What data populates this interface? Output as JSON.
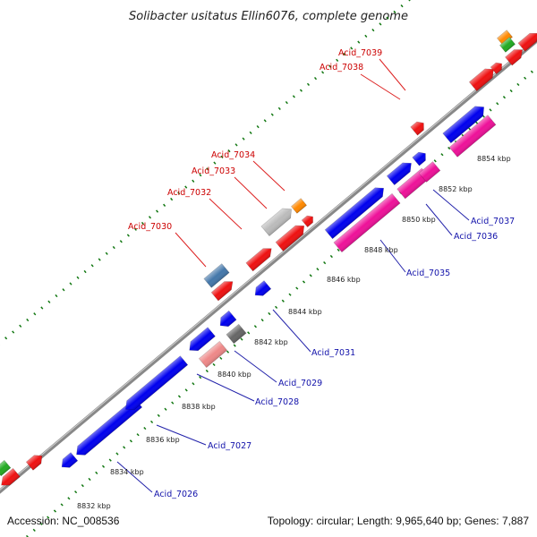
{
  "title": "Solibacter usitatus Ellin6076, complete genome",
  "footer": {
    "accession": "Accession: NC_008536",
    "summary": "Topology: circular; Length: 9,965,640 bp; Genes: 7,887"
  },
  "scale_ticks": [
    "8832 kbp",
    "8834 kbp",
    "8836 kbp",
    "8838 kbp",
    "8840 kbp",
    "8842 kbp",
    "8844 kbp",
    "8846 kbp",
    "8848 kbp",
    "8850 kbp",
    "8852 kbp",
    "8854 kbp"
  ],
  "upper_labels": [
    "Acid_7030",
    "Acid_7032",
    "Acid_7033",
    "Acid_7034",
    "Acid_7038",
    "Acid_7039"
  ],
  "lower_labels": [
    "Acid_7026",
    "Acid_7027",
    "Acid_7028",
    "Acid_7029",
    "Acid_7031",
    "Acid_7035",
    "Acid_7036",
    "Acid_7037"
  ],
  "colors": {
    "red": "#ee1111",
    "blue": "#0000ee",
    "pink": "#ee1199",
    "lightpink": "#ee8888",
    "steel": "#4477aa",
    "grey": "#bbbbbb",
    "darkgrey": "#666666",
    "orange": "#ff8800",
    "green": "#22aa22",
    "backbone": "#888888",
    "dots": "#117711"
  }
}
